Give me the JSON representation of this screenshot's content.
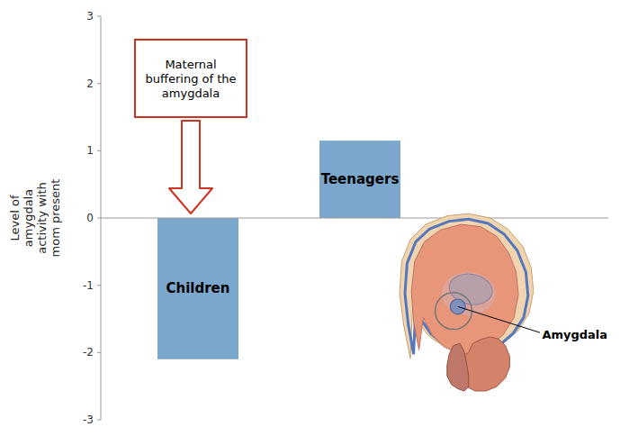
{
  "chart_data": {
    "type": "bar",
    "categories": [
      "Children",
      "Teenagers"
    ],
    "values": [
      -2.1,
      1.15
    ],
    "color": "#7ba7cc",
    "y_label": "Level of\namygdala\nactivity with\nmom present",
    "ylim": [
      -3,
      3
    ],
    "yticks": [
      -3,
      -2,
      -1,
      0,
      1,
      2,
      3
    ],
    "annotations": [
      "Maternal\nbuffering of the\namygdala",
      "Amygdala"
    ],
    "grid": false
  }
}
